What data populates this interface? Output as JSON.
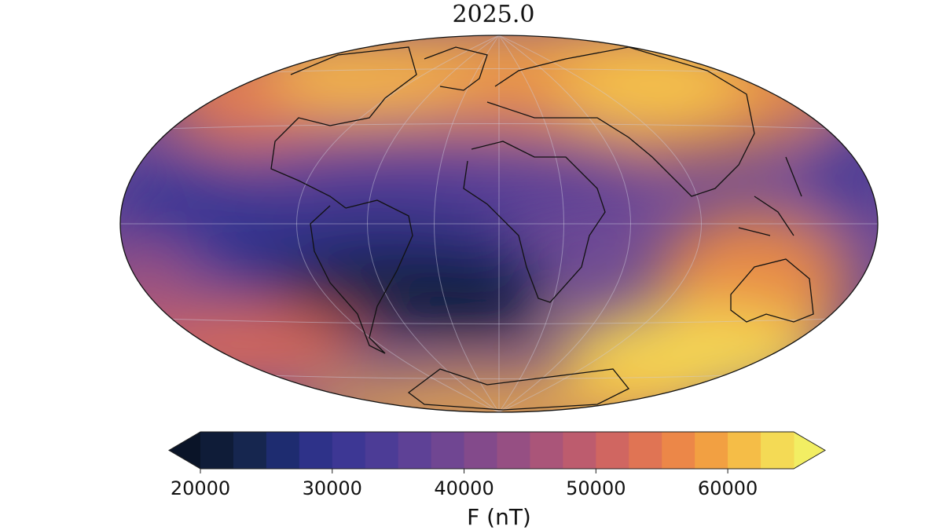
{
  "chart_data": {
    "type": "colorbar",
    "title": "2025.0",
    "label": "F (nT)",
    "xlim": [
      20000,
      65000
    ],
    "xticks": [
      20000,
      30000,
      40000,
      50000,
      60000
    ],
    "levels": [
      20000,
      22500,
      25000,
      27500,
      30000,
      32500,
      35000,
      37500,
      40000,
      42500,
      45000,
      47500,
      50000,
      52500,
      55000,
      57500,
      60000,
      62500,
      65000
    ],
    "colors": [
      "#0f1c38",
      "#16264f",
      "#1e2c70",
      "#2e3289",
      "#3d3794",
      "#4c3c96",
      "#5e4196",
      "#704692",
      "#834a8b",
      "#964f83",
      "#aa5579",
      "#bd5c6e",
      "#d06661",
      "#e07454",
      "#ec8748",
      "#f2a042",
      "#f5bd47",
      "#f4da55"
    ],
    "extend_colors": [
      "#0a1428",
      "#f2ee63"
    ]
  }
}
